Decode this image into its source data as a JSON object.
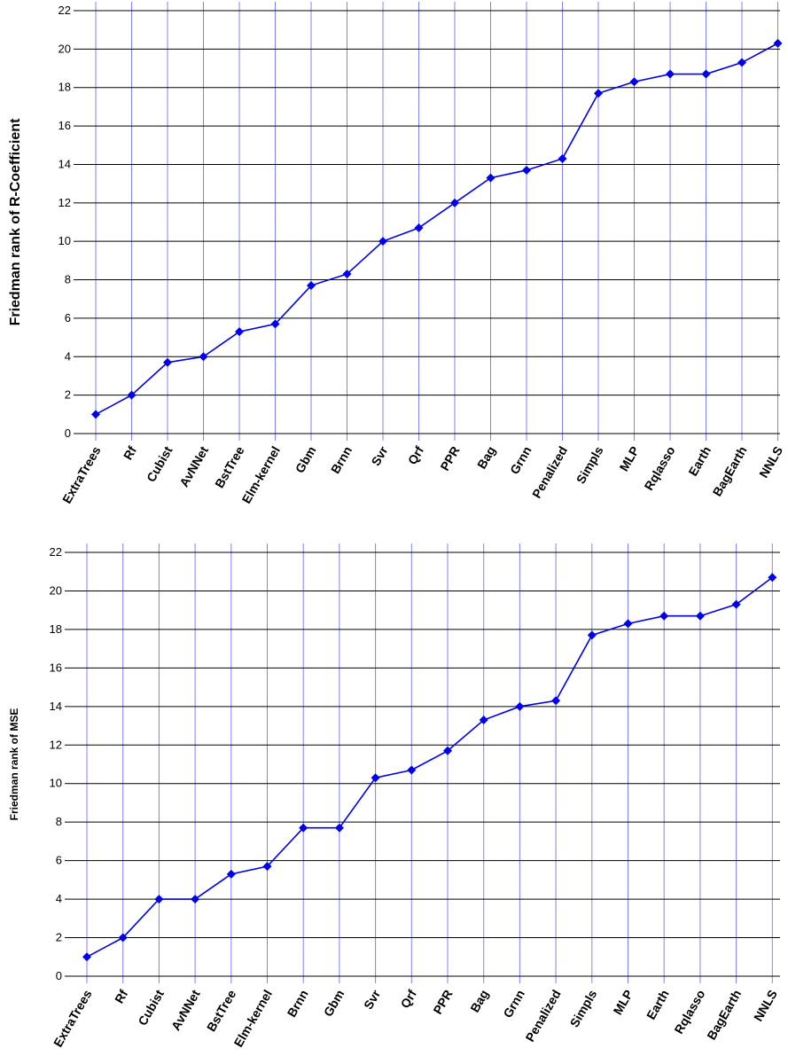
{
  "chart_data": [
    {
      "type": "line",
      "ylabel": "Friedman rank of R-Coefficient",
      "xlabel": "",
      "ylim": [
        0,
        22
      ],
      "yticks": [
        0,
        2,
        4,
        6,
        8,
        10,
        12,
        14,
        16,
        18,
        20,
        22
      ],
      "grid": true,
      "legend": "none",
      "categories": [
        "ExtraTrees",
        "Rf",
        "Cubist",
        "AvNNet",
        "BstTree",
        "Elm-kernel",
        "Gbm",
        "Brnn",
        "Svr",
        "Qrf",
        "PPR",
        "Bag",
        "Grnn",
        "Penalized",
        "Simpls",
        "MLP",
        "Rqlasso",
        "Earth",
        "BagEarth",
        "NNLS"
      ],
      "series": [
        {
          "values": [
            1.0,
            2.0,
            3.7,
            4.0,
            5.3,
            5.7,
            7.7,
            8.3,
            10.0,
            10.7,
            12.0,
            13.3,
            13.7,
            14.3,
            17.7,
            18.3,
            18.7,
            18.7,
            19.3,
            20.3
          ]
        }
      ]
    },
    {
      "type": "line",
      "ylabel": "Friedman rank of MSE",
      "xlabel": "",
      "ylim": [
        0,
        22
      ],
      "yticks": [
        0,
        2,
        4,
        6,
        8,
        10,
        12,
        14,
        16,
        18,
        20,
        22
      ],
      "grid": true,
      "legend": "none",
      "categories": [
        "ExtraTrees",
        "Rf",
        "Cubist",
        "AvNNet",
        "BstTree",
        "Elm-kernel",
        "Brnn",
        "Gbm",
        "Svr",
        "Qrf",
        "PPR",
        "Bag",
        "Grnn",
        "Penalized",
        "Simpls",
        "MLP",
        "Earth",
        "Rqlasso",
        "BagEarth",
        "NNLS"
      ],
      "series": [
        {
          "values": [
            1.0,
            2.0,
            4.0,
            4.0,
            5.3,
            5.7,
            7.7,
            7.7,
            10.3,
            10.7,
            11.7,
            13.3,
            14.0,
            14.3,
            17.7,
            18.3,
            18.7,
            18.7,
            19.3,
            20.7
          ]
        }
      ]
    }
  ],
  "colors": {
    "line": "#0000ee",
    "vertical_grid": "#8080ff",
    "horizontal_grid": "#000000",
    "text": "#000000"
  }
}
